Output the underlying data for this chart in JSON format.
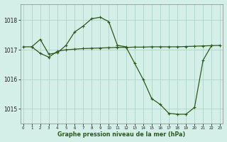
{
  "line1_x": [
    0,
    1,
    2,
    3,
    4,
    5,
    6,
    7,
    8,
    9,
    10,
    11,
    12,
    13,
    14,
    15,
    16,
    17,
    18,
    19,
    20,
    21,
    22
  ],
  "line1_y": [
    1017.1,
    1017.1,
    1017.35,
    1016.85,
    1016.9,
    1017.15,
    1017.6,
    1017.8,
    1018.05,
    1018.1,
    1017.95,
    1017.15,
    1017.1,
    1016.55,
    1016.0,
    1015.35,
    1015.15,
    1014.85,
    1014.82,
    1014.82,
    1015.05,
    1016.65,
    1017.15
  ],
  "line2_x": [
    1,
    2,
    3,
    4,
    5,
    6,
    7,
    8,
    9,
    10,
    11,
    12,
    13,
    14,
    15,
    16,
    17,
    18,
    19,
    20,
    21,
    22,
    23
  ],
  "line2_y": [
    1017.1,
    1016.88,
    1016.75,
    1016.95,
    1017.0,
    1017.02,
    1017.04,
    1017.05,
    1017.06,
    1017.07,
    1017.08,
    1017.08,
    1017.09,
    1017.09,
    1017.1,
    1017.1,
    1017.1,
    1017.1,
    1017.11,
    1017.12,
    1017.13,
    1017.14,
    1017.15
  ],
  "line_color": "#2d5a1b",
  "bg_color": "#d4eee8",
  "grid_color": "#b0d4c8",
  "ylim": [
    1014.5,
    1018.55
  ],
  "xlim": [
    -0.3,
    23.3
  ],
  "yticks": [
    1015,
    1016,
    1017,
    1018
  ],
  "xticks": [
    0,
    1,
    2,
    3,
    4,
    5,
    6,
    7,
    8,
    9,
    10,
    11,
    12,
    13,
    14,
    15,
    16,
    17,
    18,
    19,
    20,
    21,
    22,
    23
  ],
  "xlabel": "Graphe pression niveau de la mer (hPa)",
  "marker": "+"
}
